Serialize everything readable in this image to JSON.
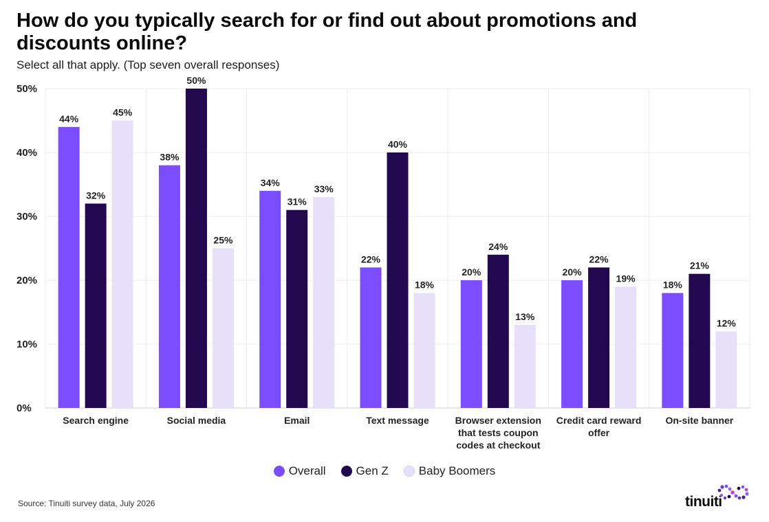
{
  "header": {
    "title": "How do you typically search for or find out about promotions and discounts online?",
    "subtitle": "Select all that apply. (Top seven overall responses)"
  },
  "chart_data": {
    "type": "bar",
    "categories": [
      [
        "Search engine"
      ],
      [
        "Social media"
      ],
      [
        "Email"
      ],
      [
        "Text message"
      ],
      [
        "Browser extension",
        "that tests coupon",
        "codes at checkout"
      ],
      [
        "Credit card reward",
        "offer"
      ],
      [
        "On-site banner"
      ]
    ],
    "series": [
      {
        "name": "Overall",
        "color": "#7c4dff",
        "values": [
          44,
          38,
          34,
          22,
          20,
          20,
          18
        ]
      },
      {
        "name": "Gen Z",
        "color": "#21084f",
        "values": [
          32,
          50,
          31,
          40,
          24,
          22,
          21
        ]
      },
      {
        "name": "Baby Boomers",
        "color": "#e6e0fb",
        "values": [
          45,
          25,
          33,
          18,
          13,
          19,
          12
        ]
      }
    ],
    "yticks": [
      "0%",
      "10%",
      "20%",
      "30%",
      "40%",
      "50%"
    ],
    "ylim": [
      0,
      50
    ],
    "value_suffix": "%",
    "grid": true,
    "legend_position": "bottom-center"
  },
  "legend": [
    {
      "label": "Overall",
      "color": "#7c4dff"
    },
    {
      "label": "Gen Z",
      "color": "#21084f"
    },
    {
      "label": "Baby Boomers",
      "color": "#e6e0fb"
    }
  ],
  "footer": {
    "source": "Source: Tinuiti survey data, July 2026",
    "logo_text": "tinuiti"
  }
}
